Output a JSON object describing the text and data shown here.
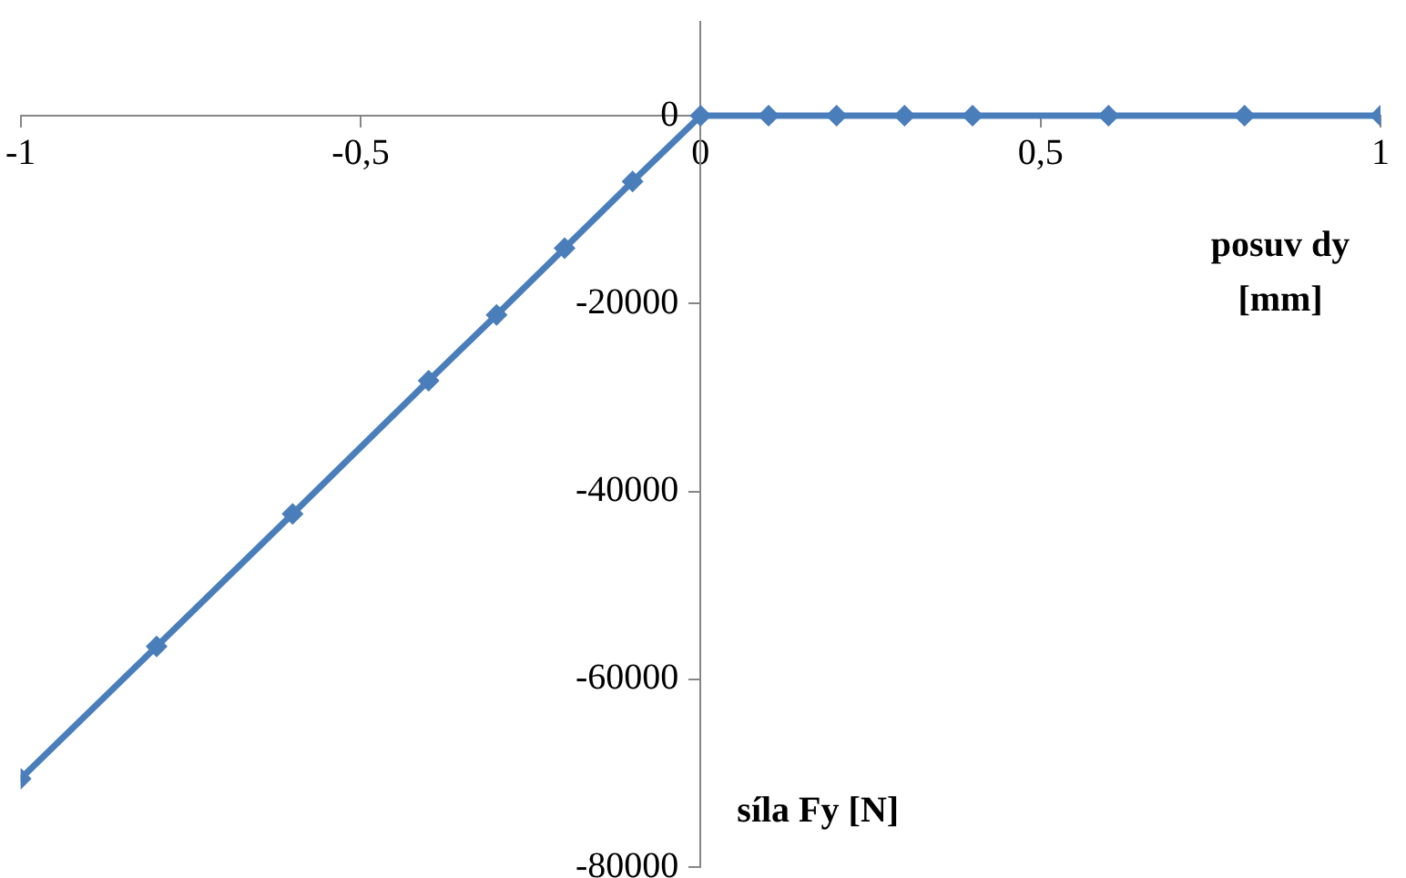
{
  "chart_data": {
    "type": "line",
    "xlabel": "posuv dy [mm]",
    "ylabel": "síla Fy [N]",
    "x": [
      -1,
      -0.8,
      -0.6,
      -0.4,
      -0.3,
      -0.2,
      -0.1,
      0,
      0.1,
      0.2,
      0.3,
      0.4,
      0.6,
      0.8,
      1
    ],
    "series": [
      {
        "color": "#4a7ebb",
        "values": [
          -70600,
          -56500,
          -42400,
          -28200,
          -21200,
          -14100,
          -7000,
          0,
          0,
          0,
          0,
          0,
          0,
          0,
          0
        ]
      }
    ],
    "xlim": [
      -1,
      1
    ],
    "xticks": [
      {
        "value": -1,
        "label": "-1"
      },
      {
        "value": -0.5,
        "label": "-0,5"
      },
      {
        "value": 0,
        "label": "0"
      },
      {
        "value": 0.5,
        "label": "0,5"
      },
      {
        "value": 1,
        "label": "1"
      }
    ],
    "ylim": [
      -80000,
      10000
    ],
    "yticks": [
      -80000,
      -60000,
      -40000,
      -20000,
      0
    ],
    "grid": false,
    "legend": false,
    "marker": "diamond",
    "line_style": "solid"
  }
}
